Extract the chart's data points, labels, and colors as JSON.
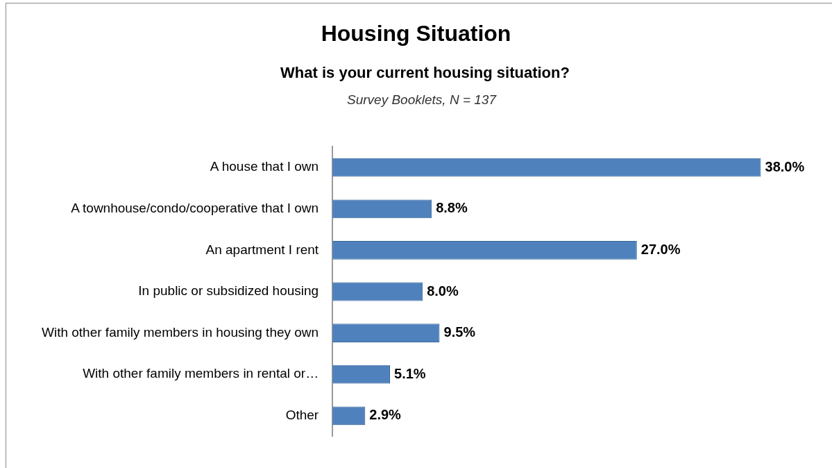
{
  "chart_data": {
    "type": "bar",
    "orientation": "horizontal",
    "title": "Housing Situation",
    "subtitle": "What is your current housing situation?",
    "annotations": [
      "Survey Booklets, N = 137"
    ],
    "categories": [
      "A house that I own",
      "A townhouse/condo/cooperative that I own",
      "An apartment I rent",
      "In public or subsidized housing",
      "With other family members in housing they own",
      "With other family members in rental or…",
      "Other"
    ],
    "values": [
      38.0,
      8.8,
      27.0,
      8.0,
      9.5,
      5.1,
      2.9
    ],
    "value_labels": [
      "38.0%",
      "8.8%",
      "27.0%",
      "8.0%",
      "9.5%",
      "5.1%",
      "2.9%"
    ],
    "color": "#4f81bd",
    "grid": false,
    "legend": false
  }
}
